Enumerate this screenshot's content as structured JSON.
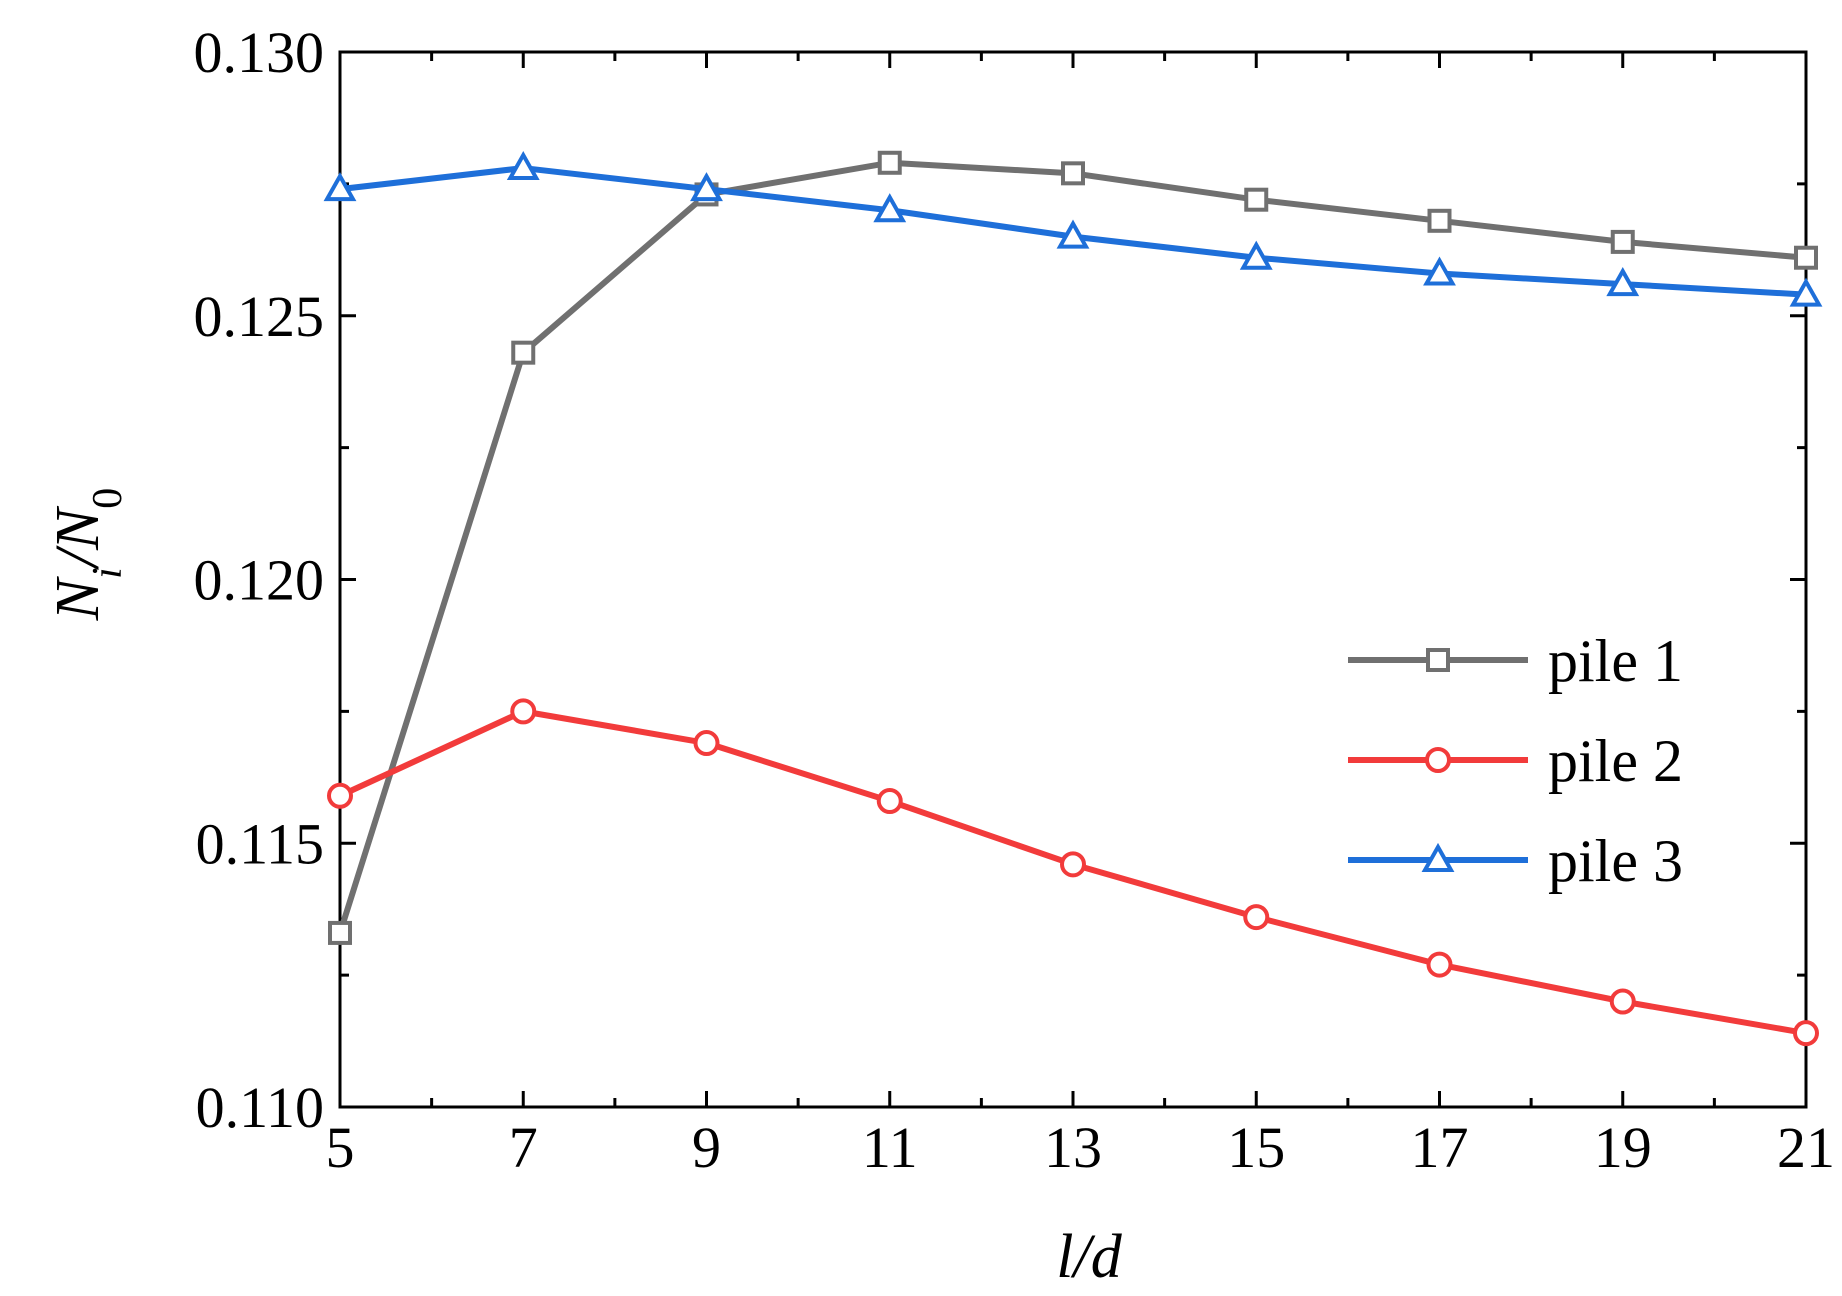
{
  "chart_data": {
    "type": "line",
    "title": "",
    "xlabel": {
      "italic_a": "l",
      "sep": "/",
      "italic_b": "d"
    },
    "ylabel": {
      "main": "N",
      "sub": "i",
      "sep": "/",
      "main2": "N",
      "sub2": "0"
    },
    "x": [
      5,
      7,
      9,
      11,
      13,
      15,
      17,
      19,
      21
    ],
    "xlim": [
      5,
      21
    ],
    "ylim": [
      0.11,
      0.13
    ],
    "xticks": [
      "5",
      "7",
      "9",
      "11",
      "13",
      "15",
      "17",
      "19",
      "21"
    ],
    "yticks": [
      "0.110",
      "0.115",
      "0.120",
      "0.125",
      "0.130"
    ],
    "yticks_values": [
      0.11,
      0.115,
      0.12,
      0.125,
      0.13
    ],
    "grid": false,
    "legend_position": "right",
    "series": [
      {
        "name": "pile 1",
        "marker": "square",
        "color": "#707070",
        "values": [
          0.1133,
          0.1243,
          0.1273,
          0.1279,
          0.1277,
          0.1272,
          0.1268,
          0.1264,
          0.1261
        ]
      },
      {
        "name": "pile 2",
        "marker": "circle",
        "color": "#f23b3b",
        "values": [
          0.1159,
          0.1175,
          0.1169,
          0.1158,
          0.1146,
          0.1136,
          0.1127,
          0.112,
          0.1114
        ]
      },
      {
        "name": "pile 3",
        "marker": "triangle",
        "color": "#1e6fd9",
        "values": [
          0.1274,
          0.1278,
          0.1274,
          0.127,
          0.1265,
          0.1261,
          0.1258,
          0.1256,
          0.1254
        ]
      }
    ]
  }
}
